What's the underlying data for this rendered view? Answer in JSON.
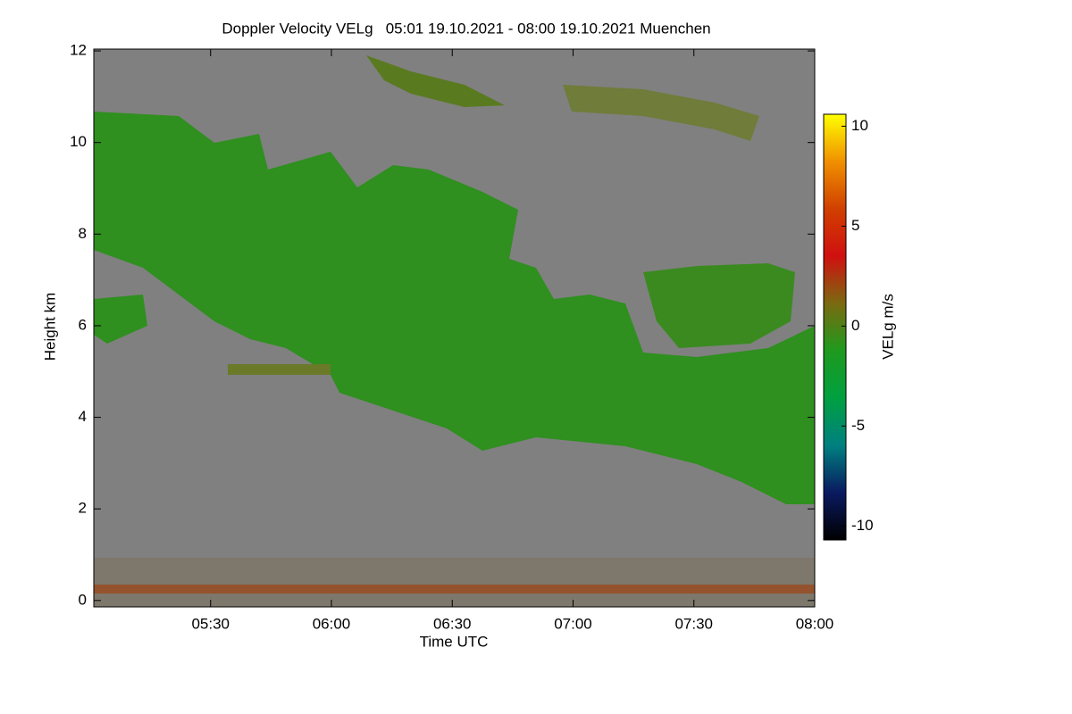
{
  "chart_data": {
    "type": "heatmap",
    "title": "Doppler Velocity VELg   05:01 19.10.2021 - 08:00 19.10.2021 Muenchen",
    "x_label": "Time UTC",
    "y_label": "Height km",
    "colorbar_label": "VELg m/s",
    "xlim": [
      301,
      480
    ],
    "xticks": [
      {
        "value": 330,
        "label": "05:30"
      },
      {
        "value": 360,
        "label": "06:00"
      },
      {
        "value": 390,
        "label": "06:30"
      },
      {
        "value": 420,
        "label": "07:00"
      },
      {
        "value": 450,
        "label": "07:30"
      },
      {
        "value": 480,
        "label": "08:00"
      }
    ],
    "ylim": [
      -0.14,
      12.04
    ],
    "yticks": [
      0,
      2,
      4,
      6,
      8,
      10,
      12
    ],
    "clim": [
      -10.7,
      10.6
    ],
    "cticks": [
      -10,
      -5,
      0,
      5,
      10
    ],
    "colormap": [
      "#000000",
      "#0a1a60",
      "#008080",
      "#00a040",
      "#1e9a1e",
      "#7a6a10",
      "#d01010",
      "#d04000",
      "#f09000",
      "#ffff00"
    ],
    "background": "#808080"
  }
}
